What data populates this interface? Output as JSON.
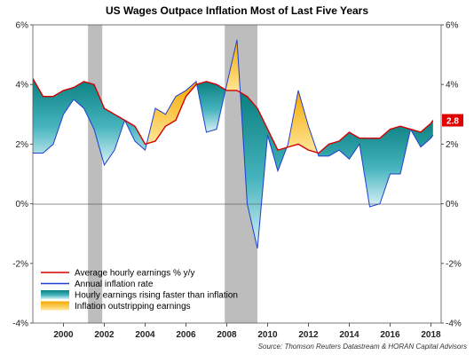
{
  "chart_data": {
    "type": "area",
    "title": "US Wages Outpace Inflation Most of Last Five Years",
    "xlabel": "",
    "ylabel": "",
    "x_range": [
      1998.5,
      2018.5
    ],
    "ylim": [
      -4,
      6
    ],
    "y_ticks": [
      "-4%",
      "-2%",
      "0%",
      "2%",
      "4%",
      "6%"
    ],
    "x_ticks": [
      "2000",
      "2002",
      "2004",
      "2006",
      "2008",
      "2010",
      "2012",
      "2014",
      "2016",
      "2018"
    ],
    "grid": false,
    "zero_line": true,
    "recessions": [
      [
        2001.2,
        2001.9
      ],
      [
        2007.9,
        2009.5
      ]
    ],
    "legend_position": "bottom-left",
    "series": [
      {
        "name": "Average hourly earnings % y/y",
        "color": "#d40000",
        "x": [
          1998.5,
          1999.0,
          1999.5,
          2000.0,
          2000.5,
          2001.0,
          2001.5,
          2002.0,
          2002.5,
          2003.0,
          2003.5,
          2004.0,
          2004.5,
          2005.0,
          2005.5,
          2006.0,
          2006.5,
          2007.0,
          2007.5,
          2008.0,
          2008.5,
          2009.0,
          2009.5,
          2010.0,
          2010.5,
          2011.0,
          2011.5,
          2012.0,
          2012.5,
          2013.0,
          2013.5,
          2014.0,
          2014.5,
          2015.0,
          2015.5,
          2016.0,
          2016.5,
          2017.0,
          2017.5,
          2018.0,
          2018.1
        ],
        "values": [
          4.2,
          3.6,
          3.6,
          3.8,
          3.9,
          4.1,
          4.0,
          3.2,
          3.0,
          2.8,
          2.6,
          2.0,
          2.1,
          2.6,
          2.8,
          3.6,
          4.0,
          4.1,
          4.0,
          3.8,
          3.8,
          3.6,
          3.2,
          2.5,
          1.8,
          1.9,
          2.0,
          1.8,
          1.7,
          2.0,
          2.1,
          2.4,
          2.2,
          2.2,
          2.2,
          2.5,
          2.6,
          2.5,
          2.4,
          2.7,
          2.8
        ]
      },
      {
        "name": "Annual inflation rate",
        "color": "#1f3fd1",
        "x": [
          1998.5,
          1999.0,
          1999.5,
          2000.0,
          2000.5,
          2001.0,
          2001.5,
          2002.0,
          2002.5,
          2003.0,
          2003.5,
          2004.0,
          2004.5,
          2005.0,
          2005.5,
          2006.0,
          2006.5,
          2007.0,
          2007.5,
          2008.0,
          2008.5,
          2009.0,
          2009.5,
          2010.0,
          2010.5,
          2011.0,
          2011.5,
          2012.0,
          2012.5,
          2013.0,
          2013.5,
          2014.0,
          2014.5,
          2015.0,
          2015.5,
          2016.0,
          2016.5,
          2017.0,
          2017.5,
          2018.0,
          2018.1
        ],
        "values": [
          1.7,
          1.7,
          2.0,
          3.0,
          3.5,
          3.2,
          2.5,
          1.3,
          1.8,
          2.8,
          2.1,
          1.8,
          3.2,
          3.0,
          3.6,
          3.8,
          4.1,
          2.4,
          2.5,
          4.0,
          5.5,
          0.0,
          -1.5,
          2.3,
          1.1,
          2.0,
          3.8,
          2.6,
          1.6,
          1.6,
          1.8,
          1.5,
          2.0,
          -0.1,
          0.0,
          1.0,
          1.0,
          2.5,
          1.9,
          2.2,
          2.3
        ]
      }
    ],
    "legend": [
      {
        "label": "Average hourly earnings % y/y",
        "kind": "line",
        "color": "#d40000"
      },
      {
        "label": "Annual inflation rate",
        "kind": "line",
        "color": "#1f3fd1"
      },
      {
        "label": "Hourly earnings rising faster than inflation",
        "kind": "fill",
        "color": "#0e8f8f"
      },
      {
        "label": "Inflation outstripping earnings",
        "kind": "fill",
        "color": "#f4b000"
      }
    ],
    "last_value_label": "2.8",
    "last_value_color": "#e00000",
    "source": "Source: Thomson Reuters Datastream & HORAN Capital Advisors"
  }
}
